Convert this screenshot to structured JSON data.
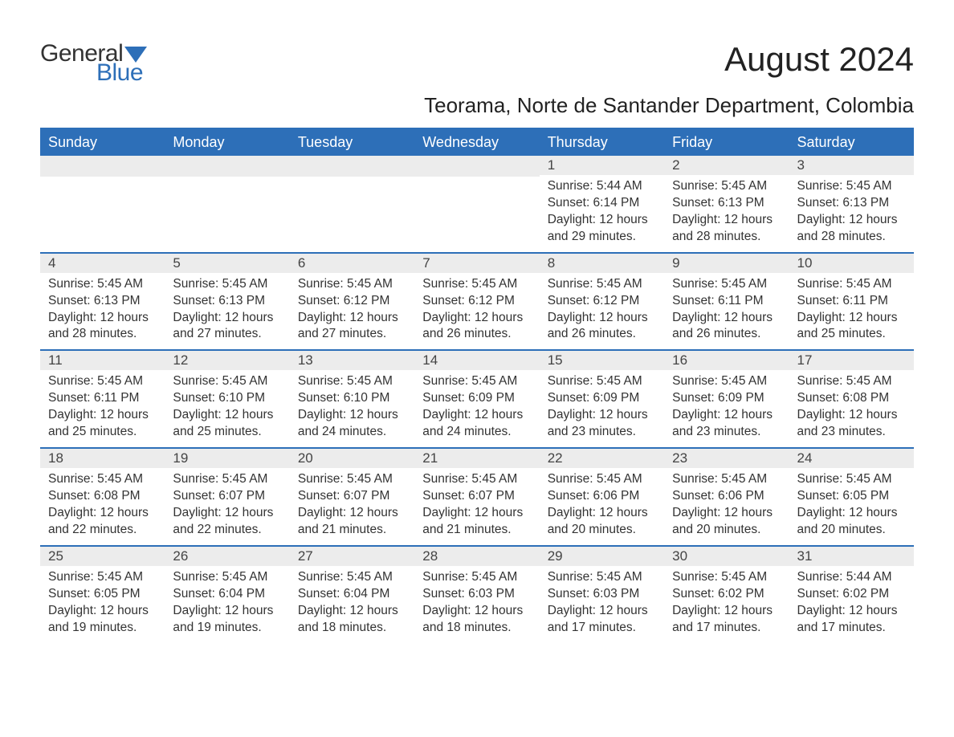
{
  "logo": {
    "text_general": "General",
    "text_blue": "Blue",
    "shape_color": "#2d6fb8"
  },
  "title": "August 2024",
  "location": "Teorama, Norte de Santander Department, Colombia",
  "colors": {
    "header_bg": "#2d6fb8",
    "daynum_bg": "#ececec",
    "text": "#333333",
    "title_text": "#222222",
    "white": "#ffffff"
  },
  "day_headers": [
    "Sunday",
    "Monday",
    "Tuesday",
    "Wednesday",
    "Thursday",
    "Friday",
    "Saturday"
  ],
  "weeks": [
    [
      null,
      null,
      null,
      null,
      {
        "n": "1",
        "sr": "Sunrise: 5:44 AM",
        "ss": "Sunset: 6:14 PM",
        "dl": "Daylight: 12 hours and 29 minutes."
      },
      {
        "n": "2",
        "sr": "Sunrise: 5:45 AM",
        "ss": "Sunset: 6:13 PM",
        "dl": "Daylight: 12 hours and 28 minutes."
      },
      {
        "n": "3",
        "sr": "Sunrise: 5:45 AM",
        "ss": "Sunset: 6:13 PM",
        "dl": "Daylight: 12 hours and 28 minutes."
      }
    ],
    [
      {
        "n": "4",
        "sr": "Sunrise: 5:45 AM",
        "ss": "Sunset: 6:13 PM",
        "dl": "Daylight: 12 hours and 28 minutes."
      },
      {
        "n": "5",
        "sr": "Sunrise: 5:45 AM",
        "ss": "Sunset: 6:13 PM",
        "dl": "Daylight: 12 hours and 27 minutes."
      },
      {
        "n": "6",
        "sr": "Sunrise: 5:45 AM",
        "ss": "Sunset: 6:12 PM",
        "dl": "Daylight: 12 hours and 27 minutes."
      },
      {
        "n": "7",
        "sr": "Sunrise: 5:45 AM",
        "ss": "Sunset: 6:12 PM",
        "dl": "Daylight: 12 hours and 26 minutes."
      },
      {
        "n": "8",
        "sr": "Sunrise: 5:45 AM",
        "ss": "Sunset: 6:12 PM",
        "dl": "Daylight: 12 hours and 26 minutes."
      },
      {
        "n": "9",
        "sr": "Sunrise: 5:45 AM",
        "ss": "Sunset: 6:11 PM",
        "dl": "Daylight: 12 hours and 26 minutes."
      },
      {
        "n": "10",
        "sr": "Sunrise: 5:45 AM",
        "ss": "Sunset: 6:11 PM",
        "dl": "Daylight: 12 hours and 25 minutes."
      }
    ],
    [
      {
        "n": "11",
        "sr": "Sunrise: 5:45 AM",
        "ss": "Sunset: 6:11 PM",
        "dl": "Daylight: 12 hours and 25 minutes."
      },
      {
        "n": "12",
        "sr": "Sunrise: 5:45 AM",
        "ss": "Sunset: 6:10 PM",
        "dl": "Daylight: 12 hours and 25 minutes."
      },
      {
        "n": "13",
        "sr": "Sunrise: 5:45 AM",
        "ss": "Sunset: 6:10 PM",
        "dl": "Daylight: 12 hours and 24 minutes."
      },
      {
        "n": "14",
        "sr": "Sunrise: 5:45 AM",
        "ss": "Sunset: 6:09 PM",
        "dl": "Daylight: 12 hours and 24 minutes."
      },
      {
        "n": "15",
        "sr": "Sunrise: 5:45 AM",
        "ss": "Sunset: 6:09 PM",
        "dl": "Daylight: 12 hours and 23 minutes."
      },
      {
        "n": "16",
        "sr": "Sunrise: 5:45 AM",
        "ss": "Sunset: 6:09 PM",
        "dl": "Daylight: 12 hours and 23 minutes."
      },
      {
        "n": "17",
        "sr": "Sunrise: 5:45 AM",
        "ss": "Sunset: 6:08 PM",
        "dl": "Daylight: 12 hours and 23 minutes."
      }
    ],
    [
      {
        "n": "18",
        "sr": "Sunrise: 5:45 AM",
        "ss": "Sunset: 6:08 PM",
        "dl": "Daylight: 12 hours and 22 minutes."
      },
      {
        "n": "19",
        "sr": "Sunrise: 5:45 AM",
        "ss": "Sunset: 6:07 PM",
        "dl": "Daylight: 12 hours and 22 minutes."
      },
      {
        "n": "20",
        "sr": "Sunrise: 5:45 AM",
        "ss": "Sunset: 6:07 PM",
        "dl": "Daylight: 12 hours and 21 minutes."
      },
      {
        "n": "21",
        "sr": "Sunrise: 5:45 AM",
        "ss": "Sunset: 6:07 PM",
        "dl": "Daylight: 12 hours and 21 minutes."
      },
      {
        "n": "22",
        "sr": "Sunrise: 5:45 AM",
        "ss": "Sunset: 6:06 PM",
        "dl": "Daylight: 12 hours and 20 minutes."
      },
      {
        "n": "23",
        "sr": "Sunrise: 5:45 AM",
        "ss": "Sunset: 6:06 PM",
        "dl": "Daylight: 12 hours and 20 minutes."
      },
      {
        "n": "24",
        "sr": "Sunrise: 5:45 AM",
        "ss": "Sunset: 6:05 PM",
        "dl": "Daylight: 12 hours and 20 minutes."
      }
    ],
    [
      {
        "n": "25",
        "sr": "Sunrise: 5:45 AM",
        "ss": "Sunset: 6:05 PM",
        "dl": "Daylight: 12 hours and 19 minutes."
      },
      {
        "n": "26",
        "sr": "Sunrise: 5:45 AM",
        "ss": "Sunset: 6:04 PM",
        "dl": "Daylight: 12 hours and 19 minutes."
      },
      {
        "n": "27",
        "sr": "Sunrise: 5:45 AM",
        "ss": "Sunset: 6:04 PM",
        "dl": "Daylight: 12 hours and 18 minutes."
      },
      {
        "n": "28",
        "sr": "Sunrise: 5:45 AM",
        "ss": "Sunset: 6:03 PM",
        "dl": "Daylight: 12 hours and 18 minutes."
      },
      {
        "n": "29",
        "sr": "Sunrise: 5:45 AM",
        "ss": "Sunset: 6:03 PM",
        "dl": "Daylight: 12 hours and 17 minutes."
      },
      {
        "n": "30",
        "sr": "Sunrise: 5:45 AM",
        "ss": "Sunset: 6:02 PM",
        "dl": "Daylight: 12 hours and 17 minutes."
      },
      {
        "n": "31",
        "sr": "Sunrise: 5:44 AM",
        "ss": "Sunset: 6:02 PM",
        "dl": "Daylight: 12 hours and 17 minutes."
      }
    ]
  ]
}
